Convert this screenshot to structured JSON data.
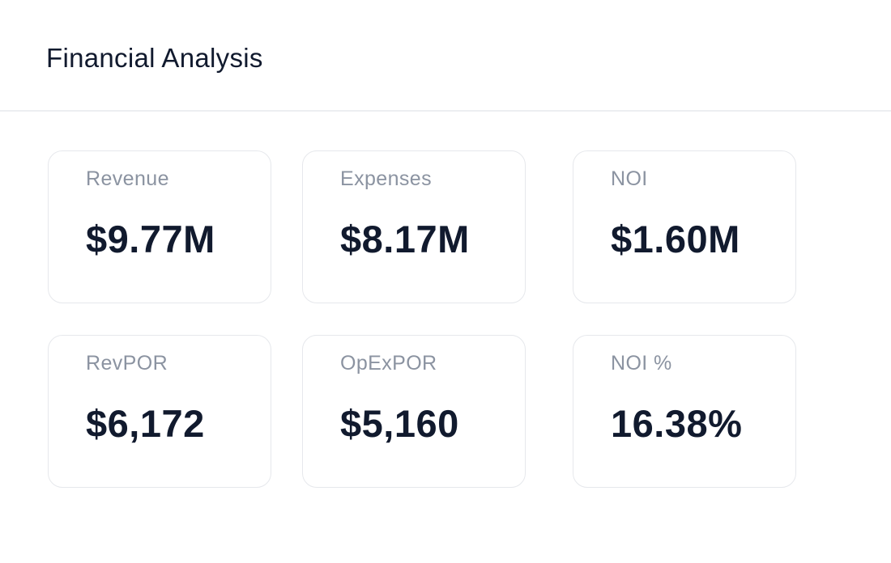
{
  "header": {
    "title": "Financial Analysis"
  },
  "metrics": [
    {
      "label": "Revenue",
      "value": "$9.77M"
    },
    {
      "label": "Expenses",
      "value": "$8.17M"
    },
    {
      "label": "NOI",
      "value": "$1.60M"
    },
    {
      "label": "RevPOR",
      "value": "$6,172"
    },
    {
      "label": "OpExPOR",
      "value": "$5,160"
    },
    {
      "label": "NOI %",
      "value": "16.38%"
    }
  ],
  "colors": {
    "text_primary": "#111a2e",
    "text_secondary": "#8b93a1",
    "border": "#e6e8ec",
    "background": "#ffffff"
  }
}
